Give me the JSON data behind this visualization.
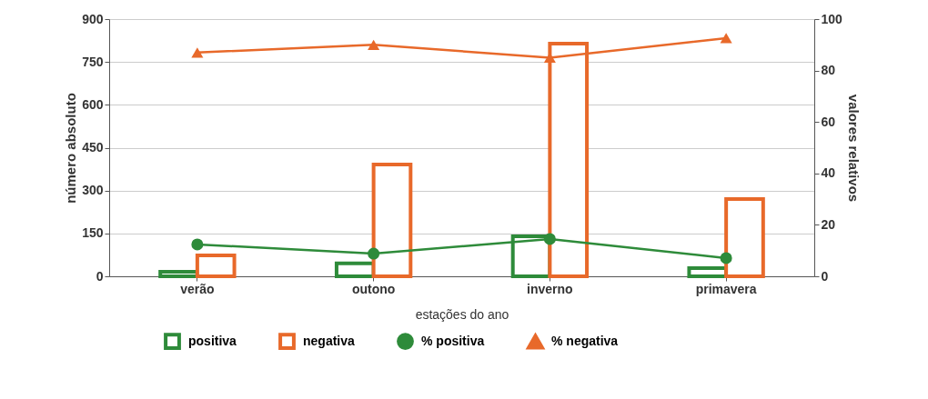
{
  "chart_data": {
    "type": "bar",
    "xlabel": "estações do ano",
    "ylabel": "número absoluto",
    "y2label": "valores relativos",
    "categories": [
      "verão",
      "outono",
      "inverno",
      "primavera"
    ],
    "series": [
      {
        "name": "positiva",
        "type": "bar",
        "color": "#2e8b3a",
        "values": [
          16,
          45,
          140,
          29
        ]
      },
      {
        "name": "negativa",
        "type": "bar",
        "color": "#e8692a",
        "values": [
          73,
          391,
          814,
          270
        ]
      },
      {
        "name": "% positiva",
        "type": "line",
        "axis": "y2",
        "marker": "circle",
        "color": "#2e8b3a",
        "values": [
          12.4,
          8.8,
          14.5,
          7.1
        ]
      },
      {
        "name": "% negativa",
        "type": "line",
        "axis": "y2",
        "marker": "triangle",
        "color": "#e8692a",
        "values": [
          87,
          90,
          85,
          92.6
        ]
      }
    ],
    "ylim": [
      0,
      900
    ],
    "yticks": [
      0,
      150,
      300,
      450,
      600,
      750,
      900
    ],
    "y2lim": [
      0,
      100
    ],
    "y2ticks": [
      0,
      20,
      40,
      60,
      80,
      100
    ],
    "grid": "y",
    "legend": "bottom"
  }
}
